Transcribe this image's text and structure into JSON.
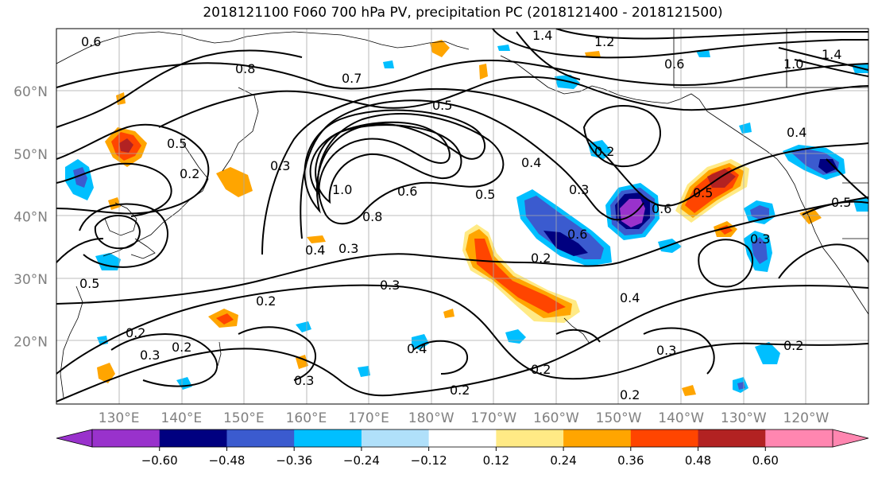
{
  "title": "2018121100 F060 700 hPa PV, precipitation PC (2018121400 - 2018121500)",
  "lat_labels": [
    {
      "text": "60°N",
      "lat": 60
    },
    {
      "text": "50°N",
      "lat": 50
    },
    {
      "text": "40°N",
      "lat": 40
    },
    {
      "text": "30°N",
      "lat": 30
    },
    {
      "text": "20°N",
      "lat": 20
    }
  ],
  "lon_labels": [
    {
      "text": "130°E",
      "lon": 130
    },
    {
      "text": "140°E",
      "lon": 140
    },
    {
      "text": "150°E",
      "lon": 150
    },
    {
      "text": "160°E",
      "lon": 160
    },
    {
      "text": "170°E",
      "lon": 170
    },
    {
      "text": "180°W",
      "lon": 180
    },
    {
      "text": "170°W",
      "lon": 190
    },
    {
      "text": "160°W",
      "lon": 200
    },
    {
      "text": "150°W",
      "lon": 210
    },
    {
      "text": "140°W",
      "lon": 220
    },
    {
      "text": "130°W",
      "lon": 230
    },
    {
      "text": "120°W",
      "lon": 240
    }
  ],
  "colorbar": {
    "colors": [
      "#9932cc",
      "#000080",
      "#3b5bcf",
      "#00bfff",
      "#b0e0fa",
      "#ffffff",
      "#ffea85",
      "#ffa500",
      "#ff4500",
      "#b22222",
      "#ff86b0"
    ],
    "ticks": [
      "−0.60",
      "−0.48",
      "−0.36",
      "−0.24",
      "−0.12",
      "0.12",
      "0.24",
      "0.36",
      "0.48",
      "0.60"
    ]
  },
  "contour_labels": [
    "0.6",
    "1.4",
    "1.2",
    "1.0",
    "1.4",
    "0.8",
    "0.6",
    "0.7",
    "0.5",
    "0.4",
    "0.3",
    "0.2",
    "0.5",
    "1.0",
    "0.8",
    "0.6",
    "0.5",
    "0.4",
    "0.3",
    "0.6",
    "0.2",
    "0.5",
    "0.6",
    "0.4",
    "0.2",
    "0.3",
    "0.3",
    "0.2",
    "0.4",
    "0.3",
    "0.2",
    "0.2",
    "0.3",
    "0.2",
    "0.4",
    "0.2",
    "0.2",
    "0.5",
    "0.3",
    "0.3",
    "0.5",
    "0.2"
  ]
}
